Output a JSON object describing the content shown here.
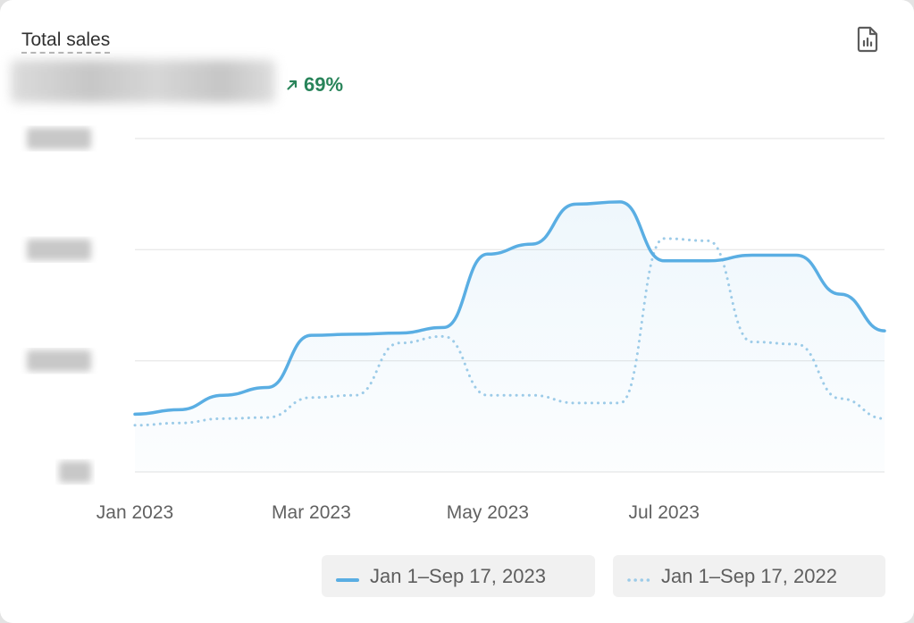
{
  "card": {
    "title": "Total sales",
    "delta": "69%"
  },
  "icons": {
    "report": "report-icon",
    "trend": "arrow-up-right-icon"
  },
  "colors": {
    "current": "#5aaee3",
    "previous": "#9ccbe8",
    "delta": "#29845a",
    "grid": "#e6e6e6"
  },
  "chart_data": {
    "type": "line",
    "x_tick_labels": [
      "Jan 2023",
      "Mar 2023",
      "May 2023",
      "Jul 2023"
    ],
    "x": [
      "Jan 1",
      "Jan 15",
      "Feb 1",
      "Feb 15",
      "Mar 1",
      "Mar 15",
      "Apr 1",
      "Apr 15",
      "May 1",
      "May 15",
      "Jun 1",
      "Jun 15",
      "Jul 1",
      "Jul 15",
      "Aug 1",
      "Aug 15",
      "Sep 1",
      "Sep 17"
    ],
    "y_range": [
      0,
      3
    ],
    "gridlines": 4,
    "y_tick_labels_hidden": true,
    "grid": true,
    "legend_position": "bottom-right",
    "series": [
      {
        "name": "Jan 1–Sep 17, 2023",
        "style": "solid",
        "values": [
          0.52,
          0.56,
          0.69,
          0.76,
          1.23,
          1.24,
          1.25,
          1.3,
          1.96,
          2.05,
          2.41,
          2.43,
          1.9,
          1.9,
          1.95,
          1.95,
          1.6,
          1.27
        ]
      },
      {
        "name": "Jan 1–Sep 17, 2022",
        "style": "dotted",
        "values": [
          0.42,
          0.44,
          0.48,
          0.49,
          0.67,
          0.69,
          1.16,
          1.22,
          0.69,
          0.69,
          0.62,
          0.62,
          2.1,
          2.08,
          1.17,
          1.15,
          0.66,
          0.48
        ]
      }
    ]
  }
}
